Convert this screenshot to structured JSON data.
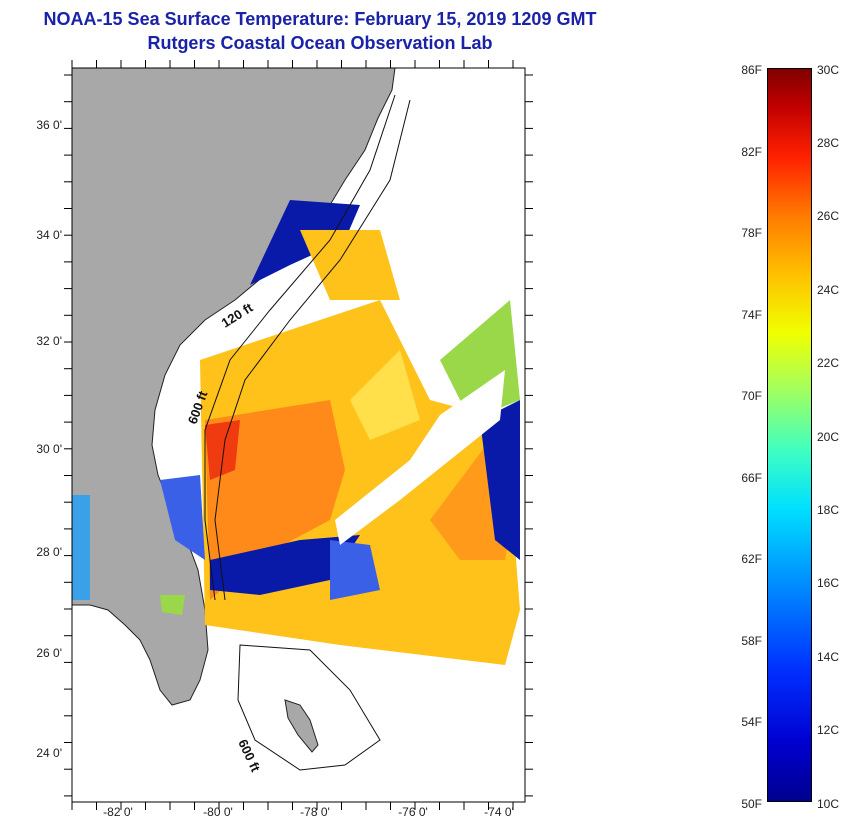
{
  "title": {
    "line1": "NOAA-15 Sea Surface Temperature:  February 15, 2019 1209 GMT",
    "line2": "Rutgers Coastal Ocean Observation Lab"
  },
  "map": {
    "lat_labels": [
      "36 0'",
      "34 0'",
      "32 0'",
      "30 0'",
      "28 0'",
      "26 0'",
      "24 0'"
    ],
    "lon_labels": [
      "-82 0'",
      "-80 0'",
      "-78 0'",
      "-76 0'",
      "-74 0'"
    ],
    "contour_labels": [
      "120 ft",
      "600 ft",
      "600 ft"
    ],
    "colors": {
      "land": "#a8a8a8",
      "cloud": "#ffffff",
      "warm": "#ff8a1a",
      "hot": "#f03a10",
      "mid": "#ffc21a",
      "cool": "#3a60e8",
      "cold": "#0a1aa8",
      "green": "#9ad84a"
    }
  },
  "colorbar": {
    "fahrenheit": [
      "86F",
      "82F",
      "78F",
      "74F",
      "70F",
      "66F",
      "62F",
      "58F",
      "54F",
      "50F"
    ],
    "celsius": [
      "30C",
      "28C",
      "26C",
      "24C",
      "22C",
      "20C",
      "18C",
      "16C",
      "14C",
      "12C",
      "10C"
    ]
  }
}
